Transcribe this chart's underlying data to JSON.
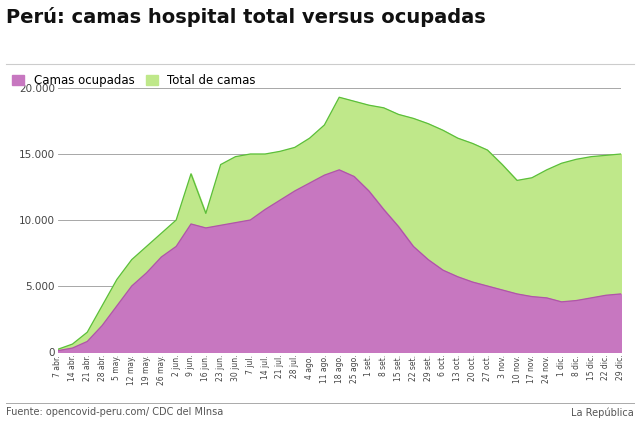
{
  "title": "Perú: camas hospital total versus ocupadas",
  "legend_labels": [
    "Camas ocupadas",
    "Total de camas"
  ],
  "source_left": "Fuente: opencovid-peru.com/ CDC del MInsa",
  "source_right": "La República",
  "ylim": [
    0,
    20000
  ],
  "yticks": [
    0,
    5000,
    10000,
    15000,
    20000
  ],
  "ytick_labels": [
    "0",
    "5.000",
    "10.000",
    "15.000",
    "20.000"
  ],
  "color_ocupadas": "#c777c0",
  "color_total": "#bfe88a",
  "color_line_total": "#5bbf3a",
  "color_line_ocupadas": "#b055a8",
  "background_color": "#ffffff",
  "grid_color": "#999999",
  "x_labels": [
    "7 abr.",
    "14 abr.",
    "21 abr.",
    "28 abr.",
    "5 may.",
    "12 may.",
    "19 may.",
    "26 may.",
    "2 jun.",
    "9 jun.",
    "16 jun.",
    "23 jun.",
    "30 jun.",
    "7 jul.",
    "14 jul.",
    "21 jul.",
    "28 jul.",
    "4 ago.",
    "11 ago.",
    "18 ago.",
    "25 ago.",
    "1 set.",
    "8 set.",
    "15 set.",
    "22 set.",
    "29 set.",
    "6 oct.",
    "13 oct.",
    "20 oct.",
    "27 oct.",
    "3 nov.",
    "10 nov.",
    "17 nov.",
    "24 nov.",
    "1 dic.",
    "8 dic.",
    "15 dic.",
    "22 dic.",
    "29 dic."
  ],
  "total_camas": [
    200,
    600,
    1500,
    3500,
    5500,
    7000,
    8000,
    9000,
    10000,
    13500,
    10500,
    14200,
    14800,
    15000,
    15000,
    15200,
    15500,
    16200,
    17200,
    19300,
    19000,
    18700,
    18500,
    18000,
    17700,
    17300,
    16800,
    16200,
    15800,
    15300,
    14200,
    13000,
    13200,
    13800,
    14300,
    14600,
    14800,
    14900,
    15000
  ],
  "camas_ocupadas": [
    100,
    300,
    800,
    2000,
    3500,
    5000,
    6000,
    7200,
    8000,
    9700,
    9400,
    9600,
    9800,
    10000,
    10800,
    11500,
    12200,
    12800,
    13400,
    13800,
    13300,
    12200,
    10800,
    9500,
    8000,
    7000,
    6200,
    5700,
    5300,
    5000,
    4700,
    4400,
    4200,
    4100,
    3800,
    3900,
    4100,
    4300,
    4400
  ],
  "title_fontsize": 14,
  "legend_fontsize": 8.5,
  "ytick_fontsize": 7.5,
  "xtick_fontsize": 5.5
}
